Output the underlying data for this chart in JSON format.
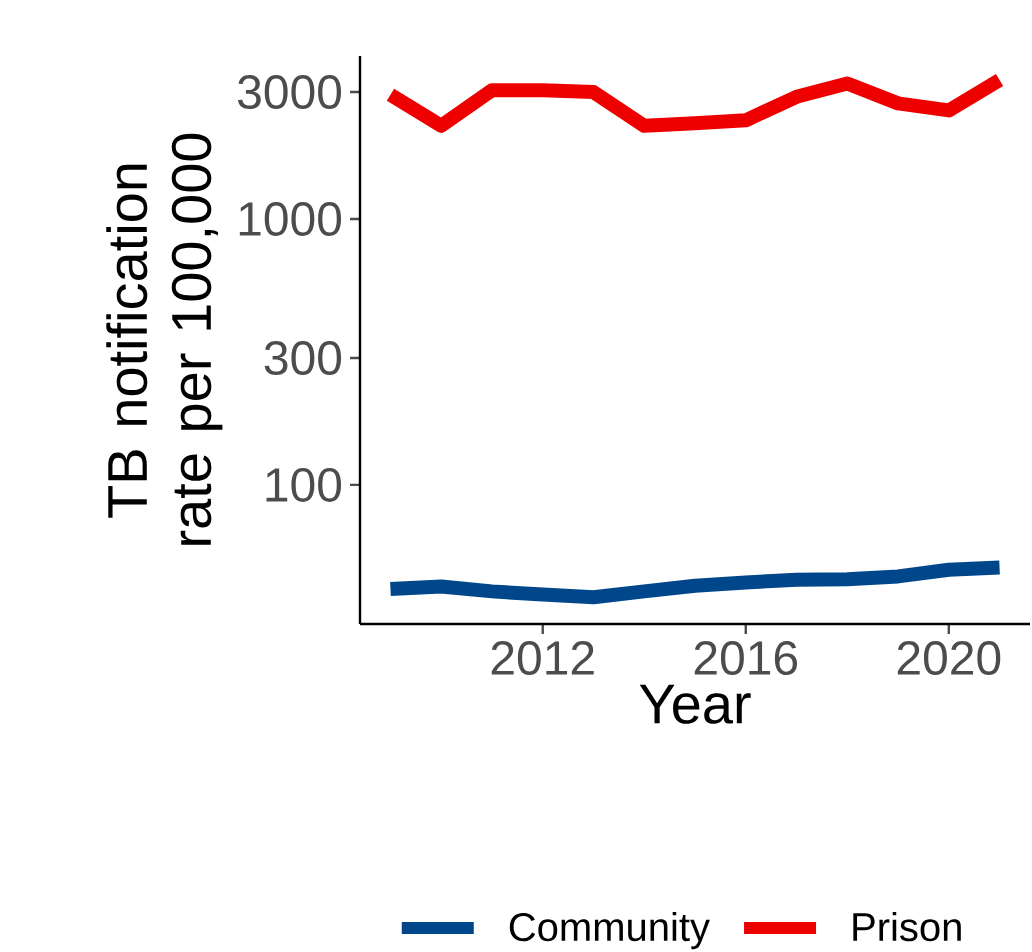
{
  "chart_data": {
    "type": "line",
    "xlabel": "Year",
    "ylabel": "TB notification rate per 100,000",
    "log": "y",
    "legend": "bottom",
    "x": [
      2009,
      2010,
      2011,
      2012,
      2013,
      2014,
      2015,
      2016,
      2017,
      2018,
      2019,
      2020,
      2021
    ],
    "xlim": [
      2008.4,
      2021.6
    ],
    "xticks": [
      2012,
      2016,
      2020
    ],
    "ylim": [
      30,
      4100
    ],
    "yticks": [
      100,
      300,
      1000,
      3000
    ],
    "series": [
      {
        "name": "Community",
        "color": "#00468b",
        "values": [
          40.6,
          41.5,
          39.8,
          38.7,
          37.8,
          39.8,
          41.8,
          43,
          44,
          44.2,
          45.3,
          48,
          48.9
        ]
      },
      {
        "name": "Prison",
        "color": "#ee0000",
        "values": [
          2930,
          2240,
          3050,
          3050,
          3000,
          2240,
          2290,
          2350,
          2880,
          3230,
          2720,
          2560,
          3330
        ]
      }
    ]
  }
}
